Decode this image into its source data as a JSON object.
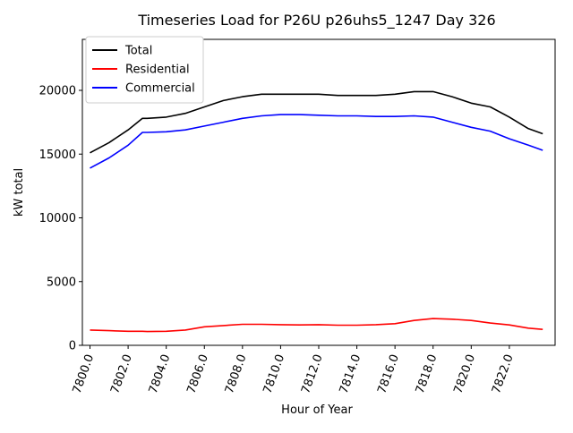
{
  "chart_data": {
    "type": "line",
    "title": "Timeseries Load for P26U p26uhs5_1247  Day 326",
    "xlabel": "Hour of Year",
    "ylabel": "kW total",
    "xlim": [
      7799.6,
      7824.4
    ],
    "ylim": [
      0,
      24000
    ],
    "x_ticks": [
      7800,
      7802,
      7804,
      7806,
      7808,
      7810,
      7812,
      7814,
      7816,
      7818,
      7820,
      7822
    ],
    "x_tick_labels": [
      "7800.0",
      "7802.0",
      "7804.0",
      "7806.0",
      "7808.0",
      "7810.0",
      "7812.0",
      "7814.0",
      "7816.0",
      "7818.0",
      "7820.0",
      "7822.0"
    ],
    "y_ticks": [
      0,
      5000,
      10000,
      15000,
      20000
    ],
    "y_tick_labels": [
      "0",
      "5000",
      "10000",
      "15000",
      "20000"
    ],
    "grid": false,
    "legend_position": "top-left",
    "x": [
      7800,
      7801,
      7802,
      7802.75,
      7803,
      7804,
      7805,
      7806,
      7807,
      7808,
      7809,
      7810,
      7811,
      7812,
      7813,
      7814,
      7815,
      7816,
      7817,
      7818,
      7819,
      7820,
      7821,
      7822,
      7823,
      7823.75
    ],
    "series": [
      {
        "name": "Total",
        "color": "#000000",
        "values": [
          15100,
          15900,
          16900,
          17800,
          17800,
          17900,
          18200,
          18700,
          19200,
          19500,
          19700,
          19700,
          19700,
          19700,
          19600,
          19600,
          19600,
          19700,
          19900,
          19900,
          19500,
          19000,
          18700,
          17900,
          17000,
          16600
        ]
      },
      {
        "name": "Residential",
        "color": "#ff0000",
        "values": [
          1200,
          1150,
          1100,
          1100,
          1080,
          1100,
          1200,
          1450,
          1550,
          1650,
          1650,
          1620,
          1600,
          1620,
          1580,
          1580,
          1620,
          1700,
          1950,
          2100,
          2050,
          1950,
          1750,
          1600,
          1350,
          1250
        ]
      },
      {
        "name": "Commercial",
        "color": "#0000ff",
        "values": [
          13900,
          14700,
          15700,
          16700,
          16700,
          16750,
          16900,
          17200,
          17500,
          17800,
          18000,
          18100,
          18100,
          18050,
          18000,
          18000,
          17950,
          17950,
          18000,
          17900,
          17500,
          17100,
          16800,
          16200,
          15700,
          15300
        ]
      }
    ]
  }
}
